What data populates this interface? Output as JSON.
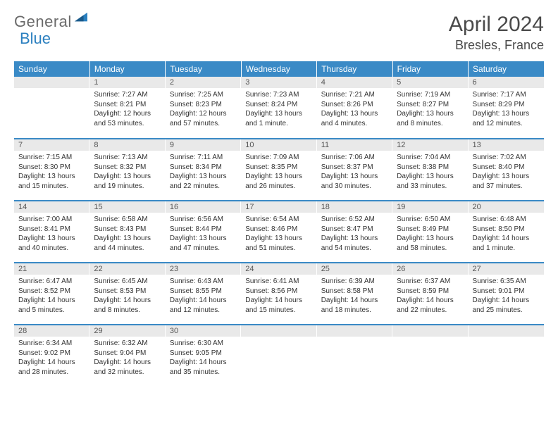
{
  "brand": {
    "word1": "General",
    "word2": "Blue"
  },
  "title": "April 2024",
  "location": "Bresles, France",
  "colors": {
    "header_bg": "#3a8ac6",
    "header_text": "#ffffff",
    "daynum_bg": "#e9e9e9",
    "row_divider": "#3a8ac6",
    "text": "#333333",
    "logo_gray": "#6a6a6a",
    "logo_blue": "#2a7fbf"
  },
  "typography": {
    "title_fontsize": 30,
    "location_fontsize": 18,
    "dayhead_fontsize": 12,
    "daynum_fontsize": 11,
    "cell_fontsize": 10
  },
  "dayHeaders": [
    "Sunday",
    "Monday",
    "Tuesday",
    "Wednesday",
    "Thursday",
    "Friday",
    "Saturday"
  ],
  "weeks": [
    [
      {
        "n": "",
        "sunrise": "",
        "sunset": "",
        "daylight": ""
      },
      {
        "n": "1",
        "sunrise": "7:27 AM",
        "sunset": "8:21 PM",
        "daylight": "12 hours and 53 minutes."
      },
      {
        "n": "2",
        "sunrise": "7:25 AM",
        "sunset": "8:23 PM",
        "daylight": "12 hours and 57 minutes."
      },
      {
        "n": "3",
        "sunrise": "7:23 AM",
        "sunset": "8:24 PM",
        "daylight": "13 hours and 1 minute."
      },
      {
        "n": "4",
        "sunrise": "7:21 AM",
        "sunset": "8:26 PM",
        "daylight": "13 hours and 4 minutes."
      },
      {
        "n": "5",
        "sunrise": "7:19 AM",
        "sunset": "8:27 PM",
        "daylight": "13 hours and 8 minutes."
      },
      {
        "n": "6",
        "sunrise": "7:17 AM",
        "sunset": "8:29 PM",
        "daylight": "13 hours and 12 minutes."
      }
    ],
    [
      {
        "n": "7",
        "sunrise": "7:15 AM",
        "sunset": "8:30 PM",
        "daylight": "13 hours and 15 minutes."
      },
      {
        "n": "8",
        "sunrise": "7:13 AM",
        "sunset": "8:32 PM",
        "daylight": "13 hours and 19 minutes."
      },
      {
        "n": "9",
        "sunrise": "7:11 AM",
        "sunset": "8:34 PM",
        "daylight": "13 hours and 22 minutes."
      },
      {
        "n": "10",
        "sunrise": "7:09 AM",
        "sunset": "8:35 PM",
        "daylight": "13 hours and 26 minutes."
      },
      {
        "n": "11",
        "sunrise": "7:06 AM",
        "sunset": "8:37 PM",
        "daylight": "13 hours and 30 minutes."
      },
      {
        "n": "12",
        "sunrise": "7:04 AM",
        "sunset": "8:38 PM",
        "daylight": "13 hours and 33 minutes."
      },
      {
        "n": "13",
        "sunrise": "7:02 AM",
        "sunset": "8:40 PM",
        "daylight": "13 hours and 37 minutes."
      }
    ],
    [
      {
        "n": "14",
        "sunrise": "7:00 AM",
        "sunset": "8:41 PM",
        "daylight": "13 hours and 40 minutes."
      },
      {
        "n": "15",
        "sunrise": "6:58 AM",
        "sunset": "8:43 PM",
        "daylight": "13 hours and 44 minutes."
      },
      {
        "n": "16",
        "sunrise": "6:56 AM",
        "sunset": "8:44 PM",
        "daylight": "13 hours and 47 minutes."
      },
      {
        "n": "17",
        "sunrise": "6:54 AM",
        "sunset": "8:46 PM",
        "daylight": "13 hours and 51 minutes."
      },
      {
        "n": "18",
        "sunrise": "6:52 AM",
        "sunset": "8:47 PM",
        "daylight": "13 hours and 54 minutes."
      },
      {
        "n": "19",
        "sunrise": "6:50 AM",
        "sunset": "8:49 PM",
        "daylight": "13 hours and 58 minutes."
      },
      {
        "n": "20",
        "sunrise": "6:48 AM",
        "sunset": "8:50 PM",
        "daylight": "14 hours and 1 minute."
      }
    ],
    [
      {
        "n": "21",
        "sunrise": "6:47 AM",
        "sunset": "8:52 PM",
        "daylight": "14 hours and 5 minutes."
      },
      {
        "n": "22",
        "sunrise": "6:45 AM",
        "sunset": "8:53 PM",
        "daylight": "14 hours and 8 minutes."
      },
      {
        "n": "23",
        "sunrise": "6:43 AM",
        "sunset": "8:55 PM",
        "daylight": "14 hours and 12 minutes."
      },
      {
        "n": "24",
        "sunrise": "6:41 AM",
        "sunset": "8:56 PM",
        "daylight": "14 hours and 15 minutes."
      },
      {
        "n": "25",
        "sunrise": "6:39 AM",
        "sunset": "8:58 PM",
        "daylight": "14 hours and 18 minutes."
      },
      {
        "n": "26",
        "sunrise": "6:37 AM",
        "sunset": "8:59 PM",
        "daylight": "14 hours and 22 minutes."
      },
      {
        "n": "27",
        "sunrise": "6:35 AM",
        "sunset": "9:01 PM",
        "daylight": "14 hours and 25 minutes."
      }
    ],
    [
      {
        "n": "28",
        "sunrise": "6:34 AM",
        "sunset": "9:02 PM",
        "daylight": "14 hours and 28 minutes."
      },
      {
        "n": "29",
        "sunrise": "6:32 AM",
        "sunset": "9:04 PM",
        "daylight": "14 hours and 32 minutes."
      },
      {
        "n": "30",
        "sunrise": "6:30 AM",
        "sunset": "9:05 PM",
        "daylight": "14 hours and 35 minutes."
      },
      {
        "n": "",
        "sunrise": "",
        "sunset": "",
        "daylight": ""
      },
      {
        "n": "",
        "sunrise": "",
        "sunset": "",
        "daylight": ""
      },
      {
        "n": "",
        "sunrise": "",
        "sunset": "",
        "daylight": ""
      },
      {
        "n": "",
        "sunrise": "",
        "sunset": "",
        "daylight": ""
      }
    ]
  ],
  "labels": {
    "sunrise": "Sunrise:",
    "sunset": "Sunset:",
    "daylight": "Daylight:"
  }
}
